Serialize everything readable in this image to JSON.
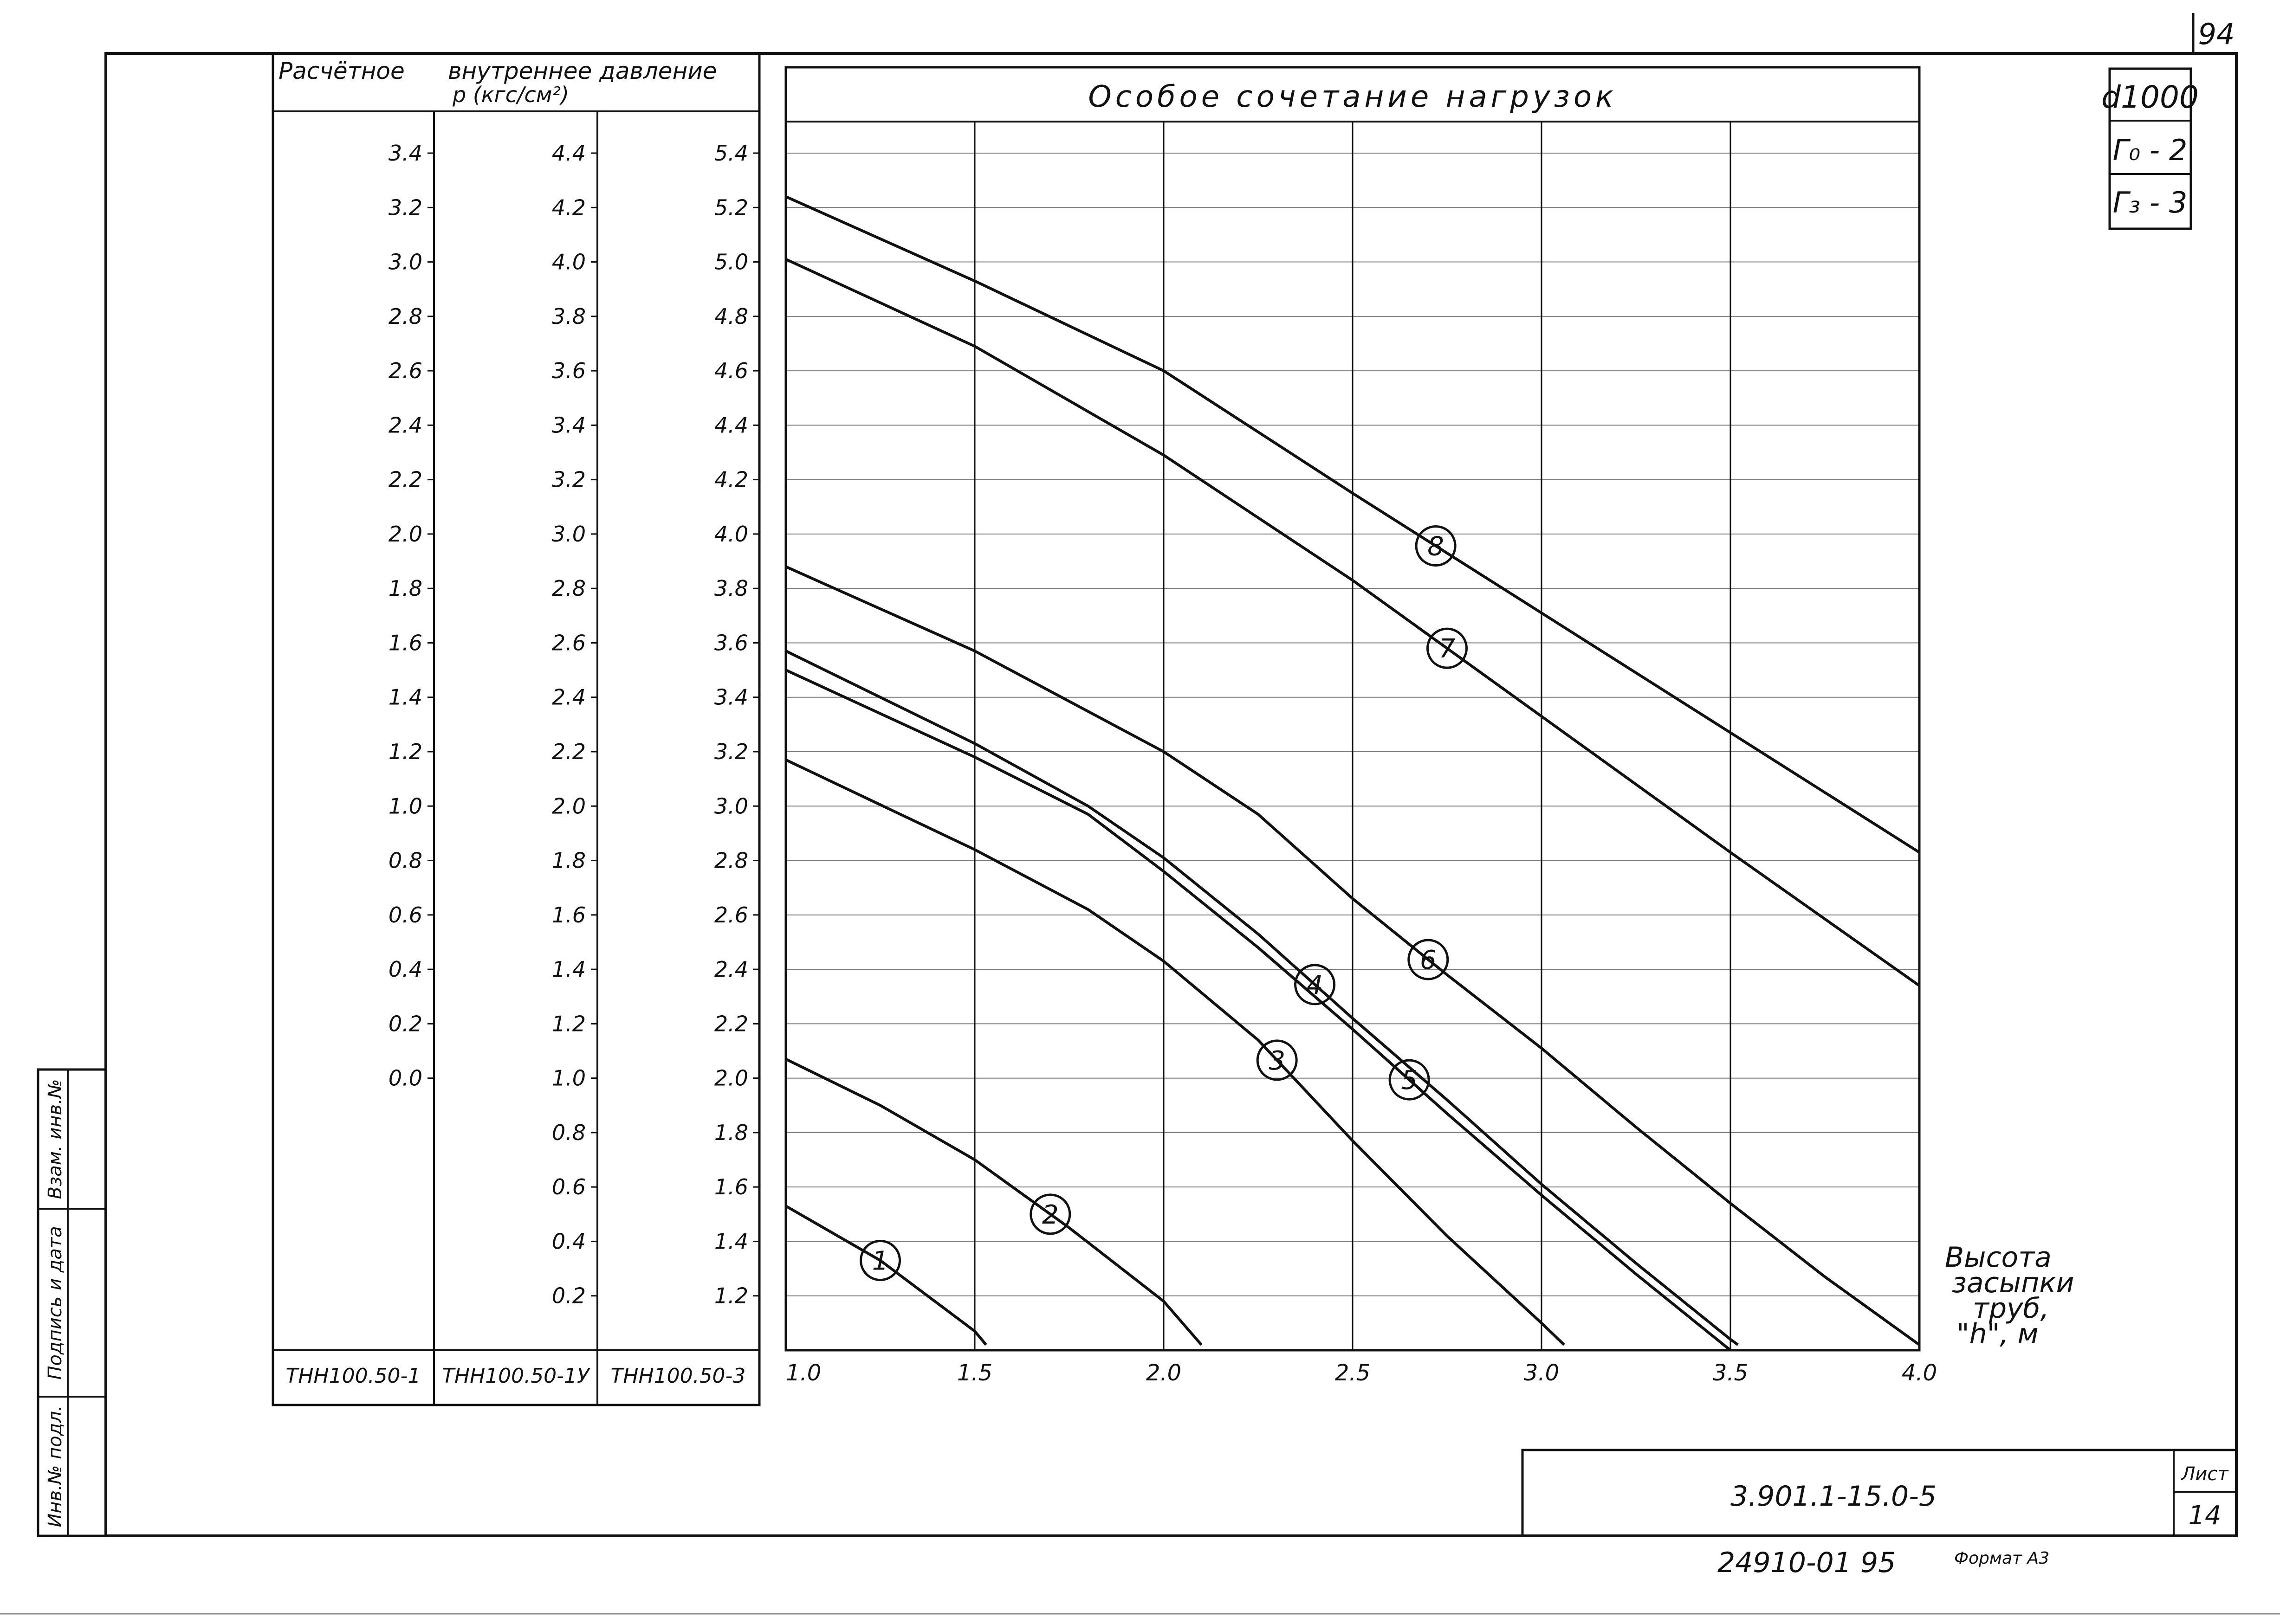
{
  "sheet_number_corner": "94",
  "stamp": {
    "diameter": "d1000",
    "g0": "Г₀ - 2",
    "g3": "Г₃ - 3"
  },
  "left_table": {
    "header_col1": "Расчётное",
    "header_col2": "внутреннее давление",
    "header_unit": "р (кгс/см²)",
    "col1_ticks": [
      "3.4",
      "3.2",
      "3.0",
      "2.8",
      "2.6",
      "2.4",
      "2.2",
      "2.0",
      "1.8",
      "1.6",
      "1.4",
      "1.2",
      "1.0",
      "0.8",
      "0.6",
      "0.4",
      "0.2",
      "0.0"
    ],
    "col2_ticks": [
      "4.4",
      "4.2",
      "4.0",
      "3.8",
      "3.6",
      "3.4",
      "3.2",
      "3.0",
      "2.8",
      "2.6",
      "2.4",
      "2.2",
      "2.0",
      "1.8",
      "1.6",
      "1.4",
      "1.2",
      "1.0",
      "0.8",
      "0.6",
      "0.4",
      "0.2"
    ],
    "col3_ticks": [
      "5.4",
      "5.2",
      "5.0",
      "4.8",
      "4.6",
      "4.4",
      "4.2",
      "4.0",
      "3.8",
      "3.6",
      "3.4",
      "3.2",
      "3.0",
      "2.8",
      "2.6",
      "2.4",
      "2.2",
      "2.0",
      "1.8",
      "1.6",
      "1.4",
      "1.2"
    ],
    "footer": [
      "ТНН100.50-1",
      "ТНН100.50-1У",
      "ТНН100.50-3"
    ]
  },
  "side_stamp": {
    "labels": [
      "Взам. инв.№",
      "Подпись и дата",
      "Инв.№ подл."
    ]
  },
  "title_block": {
    "doc_code": "3.901.1-15.0-5",
    "sheet_label": "Лист",
    "sheet_value": "14",
    "bottom_number": "24910-01 95",
    "format_label": "Формат А3"
  },
  "chart_data": {
    "type": "line",
    "title": "Особое сочетание нагрузок",
    "xlabel": "Высота засыпки труб, \"h\", м",
    "x_ticks": [
      "1.0",
      "1.5",
      "2.0",
      "2.5",
      "3.0",
      "3.5",
      "4.0"
    ],
    "xlim": [
      1.0,
      4.0
    ],
    "ylim": [
      1.0,
      5.5
    ],
    "y_note": "y values in units of the third pressure scale (р, кгс/см²)",
    "grid": true,
    "series": [
      {
        "name": "1",
        "points": [
          [
            1.0,
            1.53
          ],
          [
            1.25,
            1.33
          ],
          [
            1.5,
            1.07
          ],
          [
            1.53,
            1.02
          ]
        ]
      },
      {
        "name": "2",
        "points": [
          [
            1.0,
            2.07
          ],
          [
            1.25,
            1.9
          ],
          [
            1.5,
            1.7
          ],
          [
            1.75,
            1.45
          ],
          [
            2.0,
            1.18
          ],
          [
            2.1,
            1.02
          ]
        ]
      },
      {
        "name": "3",
        "points": [
          [
            1.0,
            3.17
          ],
          [
            1.5,
            2.84
          ],
          [
            1.8,
            2.62
          ],
          [
            2.0,
            2.43
          ],
          [
            2.25,
            2.14
          ],
          [
            2.5,
            1.77
          ],
          [
            2.75,
            1.42
          ],
          [
            3.0,
            1.1
          ],
          [
            3.06,
            1.02
          ]
        ]
      },
      {
        "name": "4",
        "points": [
          [
            1.0,
            3.57
          ],
          [
            1.5,
            3.23
          ],
          [
            1.8,
            3.0
          ],
          [
            2.0,
            2.81
          ],
          [
            2.25,
            2.53
          ],
          [
            2.5,
            2.22
          ],
          [
            2.75,
            1.92
          ],
          [
            3.0,
            1.61
          ],
          [
            3.25,
            1.32
          ],
          [
            3.5,
            1.04
          ],
          [
            3.52,
            1.02
          ]
        ]
      },
      {
        "name": "5",
        "points": [
          [
            1.0,
            3.5
          ],
          [
            1.5,
            3.18
          ],
          [
            1.8,
            2.97
          ],
          [
            2.0,
            2.76
          ],
          [
            2.25,
            2.48
          ],
          [
            2.5,
            2.18
          ],
          [
            2.75,
            1.87
          ],
          [
            3.0,
            1.57
          ],
          [
            3.25,
            1.28
          ],
          [
            3.5,
            1.0
          ]
        ]
      },
      {
        "name": "6",
        "points": [
          [
            1.0,
            3.88
          ],
          [
            1.5,
            3.57
          ],
          [
            2.0,
            3.2
          ],
          [
            2.25,
            2.97
          ],
          [
            2.5,
            2.66
          ],
          [
            2.75,
            2.38
          ],
          [
            3.0,
            2.11
          ],
          [
            3.25,
            1.82
          ],
          [
            3.5,
            1.54
          ],
          [
            3.75,
            1.27
          ],
          [
            4.0,
            1.02
          ]
        ]
      },
      {
        "name": "7",
        "points": [
          [
            1.0,
            5.01
          ],
          [
            1.5,
            4.69
          ],
          [
            2.0,
            4.29
          ],
          [
            2.5,
            3.83
          ],
          [
            3.0,
            3.33
          ],
          [
            3.5,
            2.83
          ],
          [
            4.0,
            2.34
          ]
        ]
      },
      {
        "name": "8",
        "points": [
          [
            1.0,
            5.24
          ],
          [
            1.5,
            4.93
          ],
          [
            2.0,
            4.6
          ],
          [
            2.5,
            4.15
          ],
          [
            3.0,
            3.71
          ],
          [
            3.5,
            3.27
          ],
          [
            4.0,
            2.83
          ]
        ]
      }
    ]
  }
}
